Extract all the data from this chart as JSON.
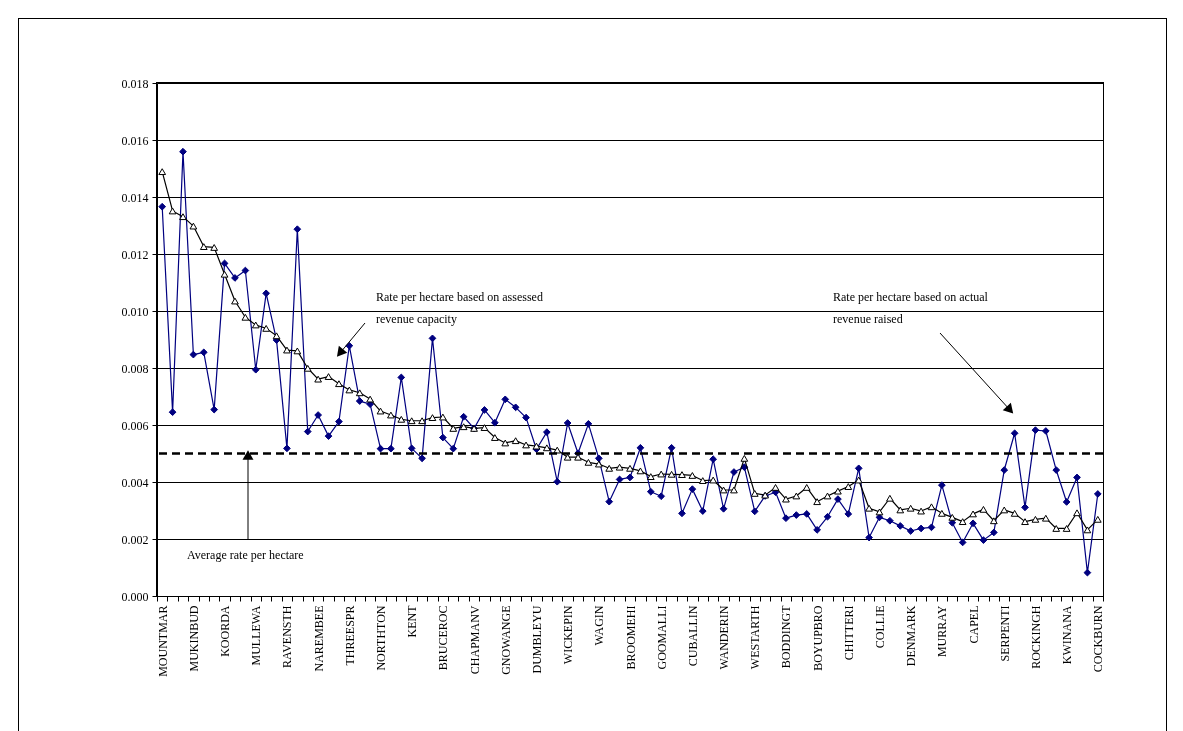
{
  "chart_data": {
    "type": "line",
    "categories": [
      "MOUNTMAR",
      null,
      null,
      "MUKINBUD",
      null,
      null,
      "KOORDA",
      null,
      null,
      "MULLEWA",
      null,
      null,
      "RAVENSTH",
      null,
      null,
      "NAREMBEE",
      null,
      null,
      "THREESPR",
      null,
      null,
      "NORTHTON",
      null,
      null,
      "KENT",
      null,
      null,
      "BRUCEROC",
      null,
      null,
      "CHAPMANV",
      null,
      null,
      "GNOWANGE",
      null,
      null,
      "DUMBLEYU",
      null,
      null,
      "WICKEPIN",
      null,
      null,
      "WAGIN",
      null,
      null,
      "BROOMEHI",
      null,
      null,
      "GOOMALLI",
      null,
      null,
      "CUBALLIN",
      null,
      null,
      "WANDERIN",
      null,
      null,
      "WESTARTH",
      null,
      null,
      "BODDINGT",
      null,
      null,
      "BOYUPBRO",
      null,
      null,
      "CHITTERI",
      null,
      null,
      "COLLIE",
      null,
      null,
      "DENMARK",
      null,
      null,
      "MURRAY",
      null,
      null,
      "CAPEL",
      null,
      null,
      "SERPENTI",
      null,
      null,
      "ROCKINGH",
      null,
      null,
      "KWINANA",
      null,
      null,
      "COCKBURN"
    ],
    "series": [
      {
        "color": "#000080",
        "marker": "diamond",
        "values": [
          0.01366,
          0.00645,
          0.01559,
          0.00847,
          0.00855,
          0.00654,
          0.01167,
          0.01116,
          0.01142,
          0.00794,
          0.01062,
          0.00898,
          0.00518,
          0.01287,
          0.00577,
          0.00635,
          0.00561,
          0.00612,
          0.00878,
          0.00684,
          0.00673,
          0.00517,
          0.00517,
          0.00767,
          0.00518,
          0.00483,
          0.00904,
          0.00556,
          0.00517,
          0.00629,
          0.00588,
          0.00653,
          0.00608,
          0.0069,
          0.00662,
          0.00626,
          0.00515,
          0.00575,
          0.00401,
          0.00607,
          0.00501,
          0.00604,
          0.00483,
          0.00331,
          0.00409,
          0.00416,
          0.0052,
          0.00366,
          0.0035,
          0.0052,
          0.0029,
          0.00375,
          0.00298,
          0.0048,
          0.00306,
          0.00435,
          0.00452,
          0.00297,
          0.00351,
          0.00364,
          0.00273,
          0.00284,
          0.00288,
          0.00232,
          0.00278,
          0.0034,
          0.00288,
          0.00448,
          0.00205,
          0.00276,
          0.00264,
          0.00246,
          0.00228,
          0.00237,
          0.00241,
          0.00389,
          0.00257,
          0.00188,
          0.00255,
          0.00196,
          0.00223,
          0.00442,
          0.00571,
          0.00311,
          0.00582,
          0.00579,
          0.00442,
          0.0033,
          0.00416,
          0.00082,
          0.00358
        ]
      },
      {
        "color": "#000000",
        "marker": "triangle",
        "values": [
          0.01489,
          0.01351,
          0.01331,
          0.01298,
          0.01226,
          0.01223,
          0.01129,
          0.01035,
          0.00978,
          0.00951,
          0.00939,
          0.00913,
          0.00863,
          0.0086,
          0.00799,
          0.00761,
          0.0077,
          0.00745,
          0.00723,
          0.00713,
          0.00691,
          0.00649,
          0.00635,
          0.0062,
          0.00615,
          0.00615,
          0.00626,
          0.00628,
          0.00588,
          0.00594,
          0.00588,
          0.00591,
          0.00556,
          0.00537,
          0.00545,
          0.0053,
          0.00526,
          0.0052,
          0.00512,
          0.00487,
          0.00487,
          0.00469,
          0.00463,
          0.00448,
          0.00452,
          0.00448,
          0.00439,
          0.00419,
          0.00428,
          0.00427,
          0.00426,
          0.00423,
          0.00405,
          0.00407,
          0.00372,
          0.00372,
          0.00483,
          0.0036,
          0.00354,
          0.00381,
          0.0034,
          0.00351,
          0.00381,
          0.00331,
          0.00351,
          0.00368,
          0.00384,
          0.00407,
          0.00308,
          0.00295,
          0.00343,
          0.00302,
          0.00308,
          0.00298,
          0.00313,
          0.0029,
          0.00276,
          0.00261,
          0.00288,
          0.00304,
          0.00264,
          0.00302,
          0.0029,
          0.00261,
          0.00269,
          0.00273,
          0.00237,
          0.00237,
          0.00292,
          0.00232,
          0.00269
        ]
      }
    ],
    "ylim": [
      0,
      0.018
    ],
    "yticks": [
      {
        "value": 0,
        "label": "0.000"
      },
      {
        "value": 0.002,
        "label": "0.002"
      },
      {
        "value": 0.004,
        "label": "0.004"
      },
      {
        "value": 0.006,
        "label": "0.006"
      },
      {
        "value": 0.008,
        "label": "0.008"
      },
      {
        "value": 0.01,
        "label": "0.010"
      },
      {
        "value": 0.012,
        "label": "0.012"
      },
      {
        "value": 0.014,
        "label": "0.014"
      },
      {
        "value": 0.016,
        "label": "0.016"
      },
      {
        "value": 0.018,
        "label": "0.018"
      }
    ],
    "grid": "y",
    "ref_lines": [
      {
        "axis": "y",
        "value": 0.005,
        "label": "Average rate per hectare",
        "color": "#000000",
        "line_style": "dashed"
      }
    ],
    "annotations": [
      "Rate per hectare based on assessed revenue capacity",
      "Rate per hectare based on actual revenue raised"
    ]
  }
}
